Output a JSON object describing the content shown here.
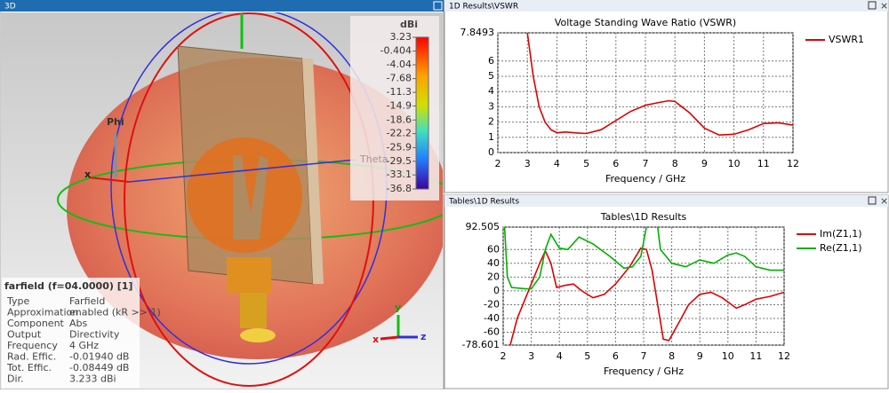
{
  "panels": {
    "view3d": {
      "header": "3D",
      "axes_labels": {
        "phi": "Phi",
        "theta": "Theta",
        "x": "x",
        "y": "y",
        "z": "z"
      },
      "colorbar": {
        "unit": "dBi",
        "clim": [
          -36.8,
          3.23
        ],
        "ticks": [
          3.23,
          -0.404,
          -4.04,
          -7.68,
          -11.3,
          -14.9,
          -18.6,
          -22.2,
          -25.9,
          -29.5,
          -33.1,
          -36.8
        ]
      },
      "info": {
        "title": "farfield (f=04.0000) [1]",
        "rows": [
          [
            "Type",
            "Farfield"
          ],
          [
            "Approximation",
            "enabled (kR >> 1)"
          ],
          [
            "Component",
            "Abs"
          ],
          [
            "Output",
            "Directivity"
          ],
          [
            "Frequency",
            "4 GHz"
          ],
          [
            "Rad. Effic.",
            "-0.01940 dB"
          ],
          [
            "Tot. Effic.",
            "-0.08449 dB"
          ],
          [
            "Dir.",
            "3.233 dBi"
          ]
        ]
      }
    },
    "vswr": {
      "header": "1D Results\\VSWR",
      "chart": {
        "type": "line",
        "title": "Voltage Standing Wave Ratio (VSWR)",
        "xlabel": "Frequency / GHz",
        "xlim": [
          2,
          12
        ],
        "xticks": [
          2,
          3,
          4,
          5,
          6,
          7,
          8,
          9,
          10,
          11,
          12
        ],
        "ylim": [
          0,
          7.8493
        ],
        "yticks": [
          7.8493,
          6,
          5,
          4,
          3,
          2,
          1,
          0
        ],
        "grid": true,
        "series": [
          {
            "name": "VSWR1",
            "color": "#e00000",
            "x": [
              3.0,
              3.2,
              3.4,
              3.6,
              3.8,
              4.0,
              4.3,
              4.6,
              5.0,
              5.5,
              6.0,
              6.5,
              7.0,
              7.5,
              7.8,
              8.0,
              8.5,
              9.0,
              9.5,
              10.0,
              10.5,
              11.0,
              11.5,
              12.0
            ],
            "values": [
              7.85,
              5.0,
              3.0,
              2.0,
              1.5,
              1.3,
              1.35,
              1.3,
              1.25,
              1.5,
              2.1,
              2.7,
              3.1,
              3.3,
              3.4,
              3.35,
              2.6,
              1.6,
              1.15,
              1.2,
              1.5,
              1.9,
              1.95,
              1.8
            ]
          }
        ]
      }
    },
    "tables": {
      "header": "Tables\\1D Results",
      "chart": {
        "type": "line",
        "title": "Tables\\1D Results",
        "xlabel": "Frequency / GHz",
        "xlim": [
          2,
          12
        ],
        "xticks": [
          2,
          3,
          4,
          5,
          6,
          7,
          8,
          9,
          10,
          11,
          12
        ],
        "ylim": [
          -78.601,
          92.505
        ],
        "yticks": [
          92.505,
          60,
          40,
          20,
          0,
          -20,
          -40,
          -60,
          -78.601
        ],
        "grid": true,
        "series": [
          {
            "name": "Im(Z1,1)",
            "color": "#e00000",
            "x": [
              2.25,
              2.5,
              2.8,
              3.0,
              3.3,
              3.5,
              3.7,
              3.9,
              4.2,
              4.5,
              4.8,
              5.2,
              5.6,
              6.0,
              6.5,
              6.9,
              7.1,
              7.3,
              7.5,
              7.7,
              7.9,
              8.2,
              8.6,
              9.0,
              9.4,
              9.8,
              10.3,
              10.6,
              11.0,
              11.5,
              12.0
            ],
            "values": [
              -78.6,
              -40,
              -10,
              10,
              40,
              58,
              40,
              5,
              8,
              10,
              0,
              -10,
              -5,
              10,
              35,
              62,
              60,
              30,
              -20,
              -70,
              -72,
              -50,
              -20,
              -5,
              -2,
              -10,
              -25,
              -20,
              -12,
              -8,
              -2
            ]
          },
          {
            "name": "Re(Z1,1)",
            "color": "#00b000",
            "x": [
              2.05,
              2.15,
              2.3,
              2.8,
              3.0,
              3.3,
              3.5,
              3.7,
              4.0,
              4.3,
              4.7,
              5.2,
              5.8,
              6.3,
              6.6,
              6.9,
              7.1,
              7.3,
              7.5,
              7.6,
              8.0,
              8.5,
              9.0,
              9.5,
              10.0,
              10.3,
              10.6,
              11.0,
              11.5,
              12.0
            ],
            "values": [
              92.5,
              20,
              5,
              3,
              3,
              20,
              60,
              82,
              62,
              60,
              78,
              68,
              50,
              33,
              35,
              50,
              92.5,
              null,
              92.5,
              60,
              40,
              35,
              45,
              40,
              52,
              55,
              50,
              35,
              30,
              30
            ]
          }
        ]
      }
    }
  }
}
